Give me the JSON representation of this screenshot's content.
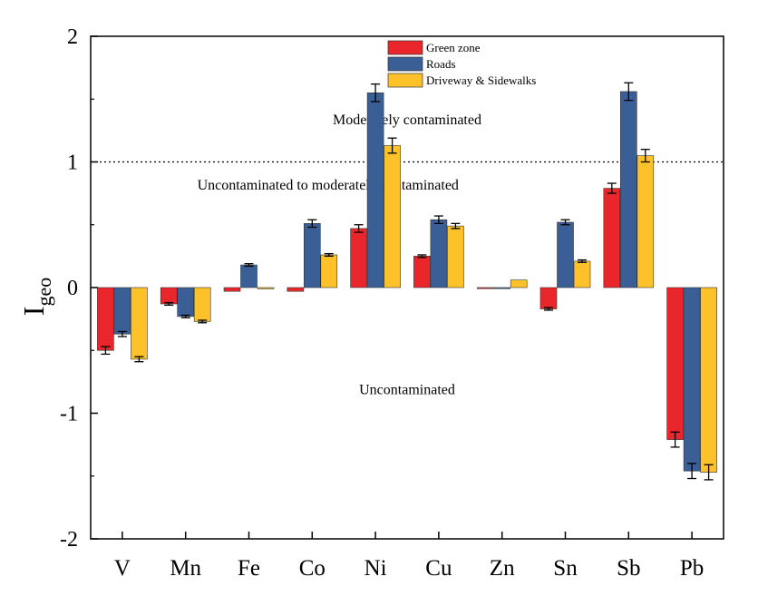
{
  "chart_data": {
    "type": "bar",
    "title": "",
    "xlabel": "",
    "ylabel": "I",
    "ylabel_subscript": "geo",
    "ylim": [
      -2,
      2
    ],
    "yticks": [
      {
        "value": 2,
        "label": "2"
      },
      {
        "value": 1,
        "label": "1"
      },
      {
        "value": 0,
        "label": "0"
      },
      {
        "value": -1,
        "label": "-1"
      },
      {
        "value": -2,
        "label": "-2"
      }
    ],
    "categories": [
      "V",
      "Mn",
      "Fe",
      "Co",
      "Ni",
      "Cu",
      "Zn",
      "Sn",
      "Sb",
      "Pb"
    ],
    "series": [
      {
        "name": "Green zone",
        "color": "#e8262b",
        "values": [
          -0.5,
          -0.13,
          -0.03,
          -0.03,
          0.47,
          0.25,
          0.0,
          -0.17,
          0.79,
          -1.21
        ],
        "errors": [
          0.03,
          0.01,
          0.0,
          0.0,
          0.03,
          0.01,
          0.0,
          0.01,
          0.04,
          0.06
        ]
      },
      {
        "name": "Roads",
        "color": "#3a5f96",
        "values": [
          -0.37,
          -0.23,
          0.18,
          0.51,
          1.55,
          0.54,
          0.0,
          0.52,
          1.56,
          -1.46
        ],
        "errors": [
          0.02,
          0.01,
          0.01,
          0.03,
          0.07,
          0.03,
          0.0,
          0.02,
          0.07,
          0.06
        ]
      },
      {
        "name": "Driveway & Sidewalks",
        "color": "#fdc12a",
        "values": [
          -0.57,
          -0.27,
          -0.01,
          0.26,
          1.13,
          0.49,
          0.06,
          0.21,
          1.05,
          -1.47
        ],
        "errors": [
          0.02,
          0.01,
          0.0,
          0.01,
          0.06,
          0.02,
          0.0,
          0.01,
          0.05,
          0.06
        ]
      }
    ],
    "reference_line": {
      "value": 1,
      "style": "dotted"
    },
    "annotations": [
      {
        "text": "Moderately contaminated",
        "x": 5.5,
        "y": 1.3
      },
      {
        "text": "Uncontaminated to moderately contaminated",
        "x": 4.25,
        "y": 0.78
      },
      {
        "text": "Uncontaminated",
        "x": 5.5,
        "y": -0.85
      }
    ],
    "legend_position": "top-center",
    "grid": false
  }
}
